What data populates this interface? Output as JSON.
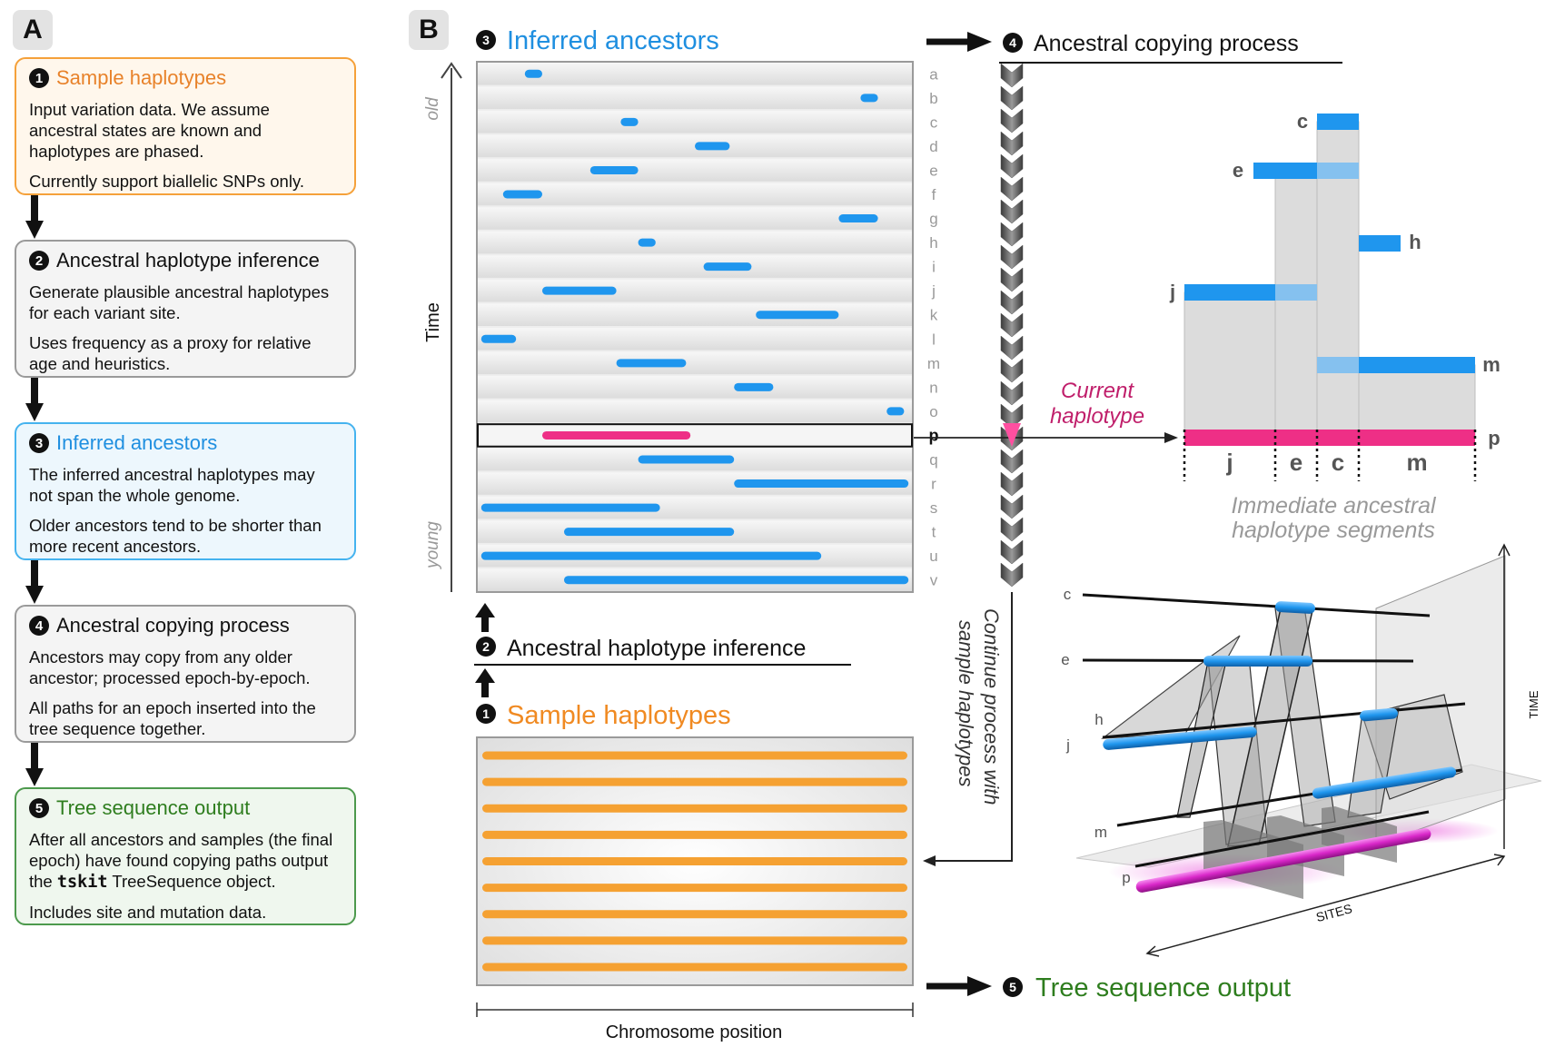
{
  "panel_a": {
    "label": "A",
    "steps": [
      {
        "num": "1",
        "title": "Sample haplotypes",
        "title_color": "#e8822a",
        "paragraphs": [
          "Input variation data. We assume ancestral states are known and haplotypes are phased.",
          "Currently support biallelic SNPs only."
        ]
      },
      {
        "num": "2",
        "title": "Ancestral haplotype inference",
        "title_color": "#111111",
        "paragraphs": [
          "Generate plausible ancestral haplotypes for each variant site.",
          "Uses frequency as a proxy for relative age and heuristics."
        ]
      },
      {
        "num": "3",
        "title": "Inferred ancestors",
        "title_color": "#1f8fe0",
        "paragraphs": [
          "The inferred ancestral haplotypes may not span the whole genome.",
          "Older ancestors tend to be shorter than more recent ancestors."
        ]
      },
      {
        "num": "4",
        "title": "Ancestral copying process",
        "title_color": "#111111",
        "paragraphs": [
          "Ancestors may copy from any older ancestor; processed epoch-by-epoch.",
          "All paths for an epoch inserted into the tree sequence together."
        ]
      },
      {
        "num": "5",
        "title": "Tree sequence output",
        "title_color": "#2e7d1e",
        "para1_before": "After all ancestors and samples (the final epoch) have found copying paths output the ",
        "para1_code": "tskit",
        "para1_after": " TreeSequence object.",
        "para2": "Includes site and mutation data."
      }
    ]
  },
  "panel_b": {
    "label": "B",
    "headers": {
      "inferred_num": "3",
      "inferred": "Inferred ancestors",
      "copying_num": "4",
      "copying": "Ancestral copying process",
      "inference_num": "2",
      "inference": "Ancestral haplotype inference",
      "sample_num": "1",
      "sample": "Sample haplotypes",
      "output_num": "5",
      "output": "Tree sequence output"
    },
    "time_axis": {
      "label": "Time",
      "old": "old",
      "young": "young"
    },
    "x_axis_label": "Chromosome position",
    "continue_text_1": "Continue process with",
    "continue_text_2": "sample haplotypes",
    "ancestors": [
      {
        "id": "a",
        "start": 0.11,
        "end": 0.15
      },
      {
        "id": "b",
        "start": 0.88,
        "end": 0.92
      },
      {
        "id": "c",
        "start": 0.33,
        "end": 0.37
      },
      {
        "id": "d",
        "start": 0.5,
        "end": 0.58
      },
      {
        "id": "e",
        "start": 0.26,
        "end": 0.37
      },
      {
        "id": "f",
        "start": 0.06,
        "end": 0.15
      },
      {
        "id": "g",
        "start": 0.83,
        "end": 0.92
      },
      {
        "id": "h",
        "start": 0.37,
        "end": 0.41
      },
      {
        "id": "i",
        "start": 0.52,
        "end": 0.63
      },
      {
        "id": "j",
        "start": 0.15,
        "end": 0.32
      },
      {
        "id": "k",
        "start": 0.64,
        "end": 0.83
      },
      {
        "id": "l",
        "start": 0.01,
        "end": 0.09
      },
      {
        "id": "m",
        "start": 0.32,
        "end": 0.48
      },
      {
        "id": "n",
        "start": 0.59,
        "end": 0.68
      },
      {
        "id": "o",
        "start": 0.94,
        "end": 0.98
      },
      {
        "id": "p",
        "start": 0.15,
        "end": 0.49,
        "current": true
      },
      {
        "id": "q",
        "start": 0.37,
        "end": 0.59
      },
      {
        "id": "r",
        "start": 0.59,
        "end": 0.99
      },
      {
        "id": "s",
        "start": 0.01,
        "end": 0.42
      },
      {
        "id": "t",
        "start": 0.2,
        "end": 0.59
      },
      {
        "id": "u",
        "start": 0.01,
        "end": 0.79
      },
      {
        "id": "v",
        "start": 0.2,
        "end": 0.99
      }
    ],
    "sample_count": 9,
    "copy_diagram": {
      "current_haplotype_1": "Current",
      "current_haplotype_2": "haplotype",
      "segment_caption_1": "Immediate ancestral",
      "segment_caption_2": "haplotype segments",
      "p_label": "p",
      "bars": [
        {
          "label": "c",
          "side": "left"
        },
        {
          "label": "e",
          "side": "left"
        },
        {
          "label": "h",
          "side": "right"
        },
        {
          "label": "j",
          "side": "left"
        },
        {
          "label": "m",
          "side": "right"
        }
      ],
      "segments": [
        "j",
        "e",
        "c",
        "m"
      ]
    },
    "three_d": {
      "row_labels": [
        "c",
        "e",
        "h",
        "j",
        "m",
        "p"
      ],
      "axis_time": "TIME",
      "axis_sites": "SITES"
    }
  },
  "colors": {
    "blue": "#1f96ee",
    "orange": "#f5a132",
    "pink": "#ee2f86",
    "magenta": "#d928c9"
  }
}
